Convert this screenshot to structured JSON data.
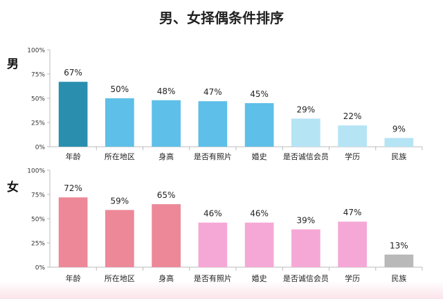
{
  "title": "男、女择偶条件排序",
  "chart_data": [
    {
      "type": "bar",
      "panel_label": "男",
      "categories": [
        "年龄",
        "所在地区",
        "身高",
        "是否有照片",
        "婚史",
        "是否诚信会员",
        "学历",
        "民族"
      ],
      "values": [
        67,
        50,
        48,
        47,
        45,
        29,
        22,
        9
      ],
      "value_labels": [
        "67%",
        "50%",
        "48%",
        "47%",
        "45%",
        "29%",
        "22%",
        "9%"
      ],
      "yticks": [
        "0%",
        "25%",
        "50%",
        "75%",
        "100%"
      ],
      "ylim": [
        0,
        100
      ],
      "bar_colors": [
        "#2a8fae",
        "#5ebfe8",
        "#5ebfe8",
        "#5ebfe8",
        "#5ebfe8",
        "#b5e4f5",
        "#b5e4f5",
        "#b5e4f5"
      ],
      "grid": false
    },
    {
      "type": "bar",
      "panel_label": "女",
      "categories": [
        "年龄",
        "所在地区",
        "身高",
        "是否有照片",
        "婚史",
        "是否诚信会员",
        "学历",
        "民族"
      ],
      "values": [
        72,
        59,
        65,
        46,
        46,
        39,
        47,
        13
      ],
      "value_labels": [
        "72%",
        "59%",
        "65%",
        "46%",
        "46%",
        "39%",
        "47%",
        "13%"
      ],
      "yticks": [
        "0%",
        "25%",
        "50%",
        "75%",
        "100%"
      ],
      "ylim": [
        0,
        100
      ],
      "bar_colors": [
        "#ec8898",
        "#ec8898",
        "#ec8898",
        "#f5a8d6",
        "#f5a8d6",
        "#f5a8d6",
        "#f5a8d6",
        "#b9b9b9"
      ],
      "grid": false
    }
  ]
}
